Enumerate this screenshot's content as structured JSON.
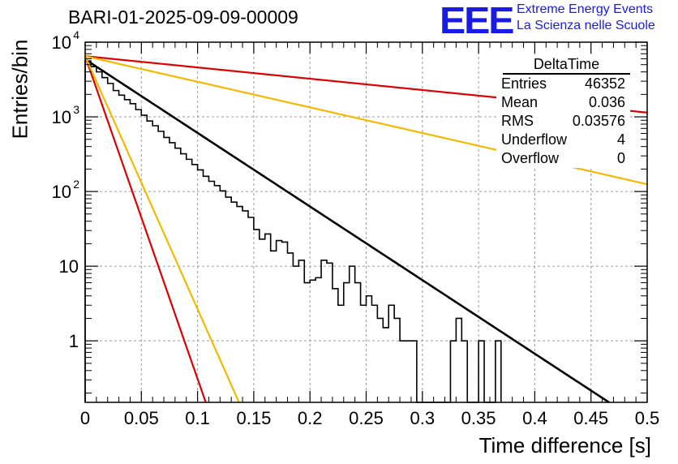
{
  "page": {
    "title": "BARI-01-2025-09-09-00009",
    "logo": {
      "mark": "EEE",
      "line1": "Extreme Energy Events",
      "line2": "La Scienza nelle Scuole"
    }
  },
  "stats": {
    "title": "DeltaTime",
    "rows": [
      {
        "label": "Entries",
        "value": "46352"
      },
      {
        "label": "Mean",
        "value": "0.036"
      },
      {
        "label": "RMS",
        "value": "0.03576"
      },
      {
        "label": "Underflow",
        "value": "4"
      },
      {
        "label": "Overflow",
        "value": "0"
      }
    ]
  },
  "chart_data": {
    "type": "histogram",
    "title": "BARI-01-2025-09-09-00009",
    "xlabel": "Time difference [s]",
    "ylabel": "Entries/bin",
    "xlim": [
      0,
      0.5
    ],
    "ylim": [
      0.15,
      10000
    ],
    "yscale": "log",
    "grid": true,
    "x_ticks": [
      "0",
      "0.05",
      "0.1",
      "0.15",
      "0.2",
      "0.25",
      "0.3",
      "0.35",
      "0.4",
      "0.45",
      "0.5"
    ],
    "y_ticks": [
      {
        "value": 10000,
        "base": "10",
        "exp": "4"
      },
      {
        "value": 1000,
        "base": "10",
        "exp": "3"
      },
      {
        "value": 100,
        "base": "10",
        "exp": "2"
      },
      {
        "value": 10,
        "base": "10",
        "exp": ""
      },
      {
        "value": 1,
        "base": "1",
        "exp": ""
      }
    ],
    "histogram": {
      "bin_width": 0.005,
      "counts": [
        5600,
        4700,
        4000,
        3350,
        2800,
        2250,
        1950,
        1700,
        1500,
        1250,
        1050,
        880,
        760,
        640,
        530,
        450,
        380,
        320,
        270,
        230,
        195,
        160,
        137,
        120,
        102,
        84,
        72,
        63,
        55,
        45,
        31,
        23,
        27,
        16,
        22,
        21,
        15,
        10,
        12,
        6,
        6.5,
        7,
        12,
        11,
        5,
        3,
        6,
        10,
        6,
        3,
        4,
        3,
        2,
        1.5,
        3,
        2,
        1,
        1,
        1,
        0,
        0,
        0,
        0,
        0,
        0,
        1,
        2,
        1,
        0,
        0,
        1,
        0,
        0,
        1
      ]
    },
    "fits": [
      {
        "name": "fit",
        "color": "#000000",
        "y0": 5900,
        "slope": -22.7
      },
      {
        "name": "fast-red",
        "color": "#dd0000",
        "y0": 6500,
        "slope": -99.5
      },
      {
        "name": "fast-orange",
        "color": "#f5b800",
        "y0": 6500,
        "slope": -78.0
      },
      {
        "name": "slow-red",
        "color": "#dd0000",
        "y0": 6500,
        "slope": -3.48
      },
      {
        "name": "slow-orange",
        "color": "#f5b800",
        "y0": 6500,
        "slope": -7.9
      }
    ]
  }
}
